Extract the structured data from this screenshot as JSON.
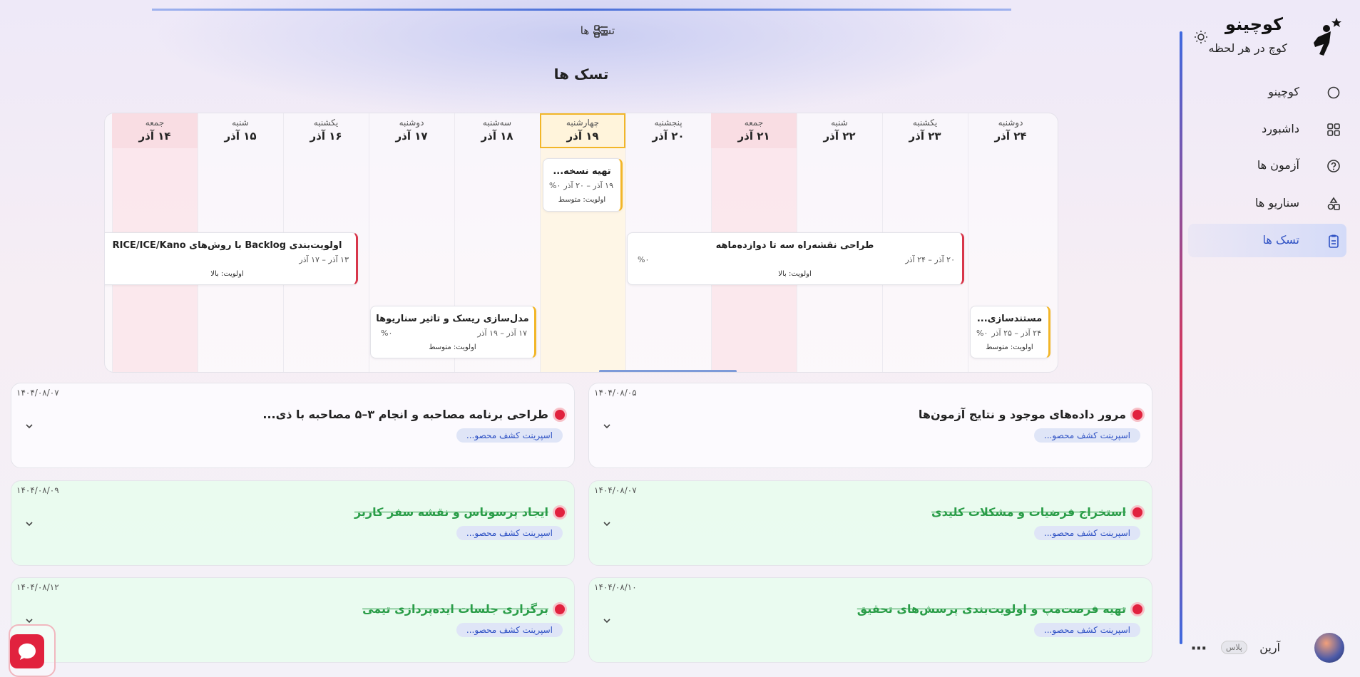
{
  "sidebar": {
    "brand": "کوچینو",
    "tagline": "کوچ در هر لحظه",
    "nav": [
      "کوچینو",
      "داشبورد",
      "آزمون ها",
      "سناریو ها",
      "تسک ها"
    ],
    "user": {
      "name": "آرین",
      "badge": "پلاس"
    }
  },
  "header": {
    "section_label": "تسک ها",
    "title": "تسک ها"
  },
  "calendar": {
    "days": [
      {
        "weekday": "دوشنبه",
        "date": "۲۴ آذر"
      },
      {
        "weekday": "یکشنبه",
        "date": "۲۳ آذر"
      },
      {
        "weekday": "شنبه",
        "date": "۲۲ آذر"
      },
      {
        "weekday": "جمعه",
        "date": "۲۱ آذر"
      },
      {
        "weekday": "پنجشنبه",
        "date": "۲۰ آذر"
      },
      {
        "weekday": "چهارشنبه",
        "date": "۱۹ آذر"
      },
      {
        "weekday": "سه‌شنبه",
        "date": "۱۸ آذر"
      },
      {
        "weekday": "دوشنبه",
        "date": "۱۷ آذر"
      },
      {
        "weekday": "یکشنبه",
        "date": "۱۶ آذر"
      },
      {
        "weekday": "شنبه",
        "date": "۱۵ آذر"
      },
      {
        "weekday": "جمعه",
        "date": "۱۴ آذر"
      }
    ],
    "tasks": [
      {
        "title": "تهیه نسخه...",
        "dates": "۱۹ آذر – ۲۰ آذر",
        "progress": "%۰",
        "priority": "اولویت: متوسط"
      },
      {
        "title": "اولویت‌بندی Backlog با روش‌های RICE/ICE/Kano",
        "dates": "۱۳ آذر – ۱۷ آذر",
        "priority": "اولویت: بالا"
      },
      {
        "title": "طراحی نقشه‌راه سه تا دوازده‌ماهه",
        "dates": "۲۰ آذر – ۲۴ آذر",
        "progress": "%۰",
        "priority": "اولویت: بالا"
      },
      {
        "title": "مدل‌سازی ریسک و تاثیر سناریوها",
        "dates": "۱۷ آذر – ۱۹ آذر",
        "progress": "%۰",
        "priority": "اولویت: متوسط"
      },
      {
        "title": "مستندسازی...",
        "dates": "۲۴ آذر – ۲۵ آذر",
        "progress": "%۰",
        "priority": "اولویت: متوسط"
      }
    ]
  },
  "task_list": [
    {
      "title": "مرور داده‌های موجود و نتایج آزمون‌ها",
      "date": "۱۴۰۴/۰۸/۰۵",
      "tag": "اسپرینت کشف محصو...",
      "done": false
    },
    {
      "title": "طراحی برنامه مصاحبه و انجام ۳–۵ مصاحبه با ذی...",
      "date": "۱۴۰۴/۰۸/۰۷",
      "tag": "اسپرینت کشف محصو...",
      "done": false
    },
    {
      "title": "استخراج فرضیات و مشکلات کلیدی",
      "date": "۱۴۰۴/۰۸/۰۷",
      "tag": "اسپرینت کشف محصو...",
      "done": true
    },
    {
      "title": "ایجاد پرسوناس و نقشه سفر کاربر",
      "date": "۱۴۰۴/۰۸/۰۹",
      "tag": "اسپرینت کشف محصو...",
      "done": true
    },
    {
      "title": "تهیه فرصت‌مپ و اولویت‌بندی پرسش‌های تحقیق",
      "date": "۱۴۰۴/۰۸/۱۰",
      "tag": "اسپرینت کشف محصو...",
      "done": true
    },
    {
      "title": "برگزاری جلسات ایده‌پردازی تیمی",
      "date": "۱۴۰۴/۰۸/۱۲",
      "tag": "اسپرینت کشف محصو...",
      "done": true
    }
  ]
}
